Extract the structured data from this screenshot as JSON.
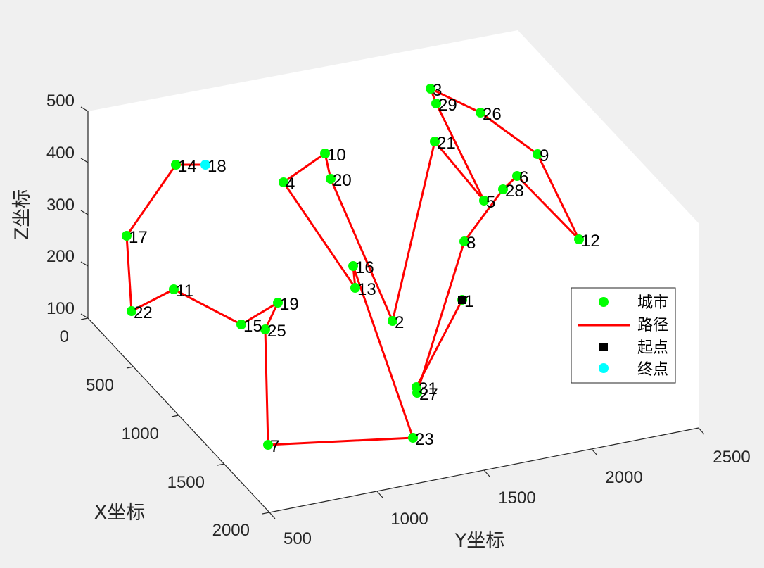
{
  "chart_data": {
    "type": "scatter",
    "projection": "3d",
    "xlabel": "X坐标",
    "ylabel": "Y坐标",
    "zlabel": "Z坐标",
    "x_ticks": [
      "0",
      "500",
      "1000",
      "1500",
      "2000"
    ],
    "y_ticks": [
      "500",
      "1000",
      "1500",
      "2000",
      "2500"
    ],
    "z_ticks": [
      "100",
      "200",
      "300",
      "400",
      "500"
    ],
    "legend": {
      "placement": "east",
      "items": [
        {
          "label": "城市",
          "kind": "point",
          "color": "#00ff00"
        },
        {
          "label": "路径",
          "kind": "line",
          "color": "#ff0000"
        },
        {
          "label": "起点",
          "kind": "square",
          "color": "#000000"
        },
        {
          "label": "终点",
          "kind": "point",
          "color": "#00ffff"
        }
      ]
    },
    "colors": {
      "city": "#00ff00",
      "path": "#ff0000",
      "start": "#000000",
      "end": "#00ffff"
    },
    "cities": [
      {
        "id": "1",
        "sx": 657,
        "sy": 426
      },
      {
        "id": "2",
        "sx": 558,
        "sy": 456
      },
      {
        "id": "3",
        "sx": 612,
        "sy": 126
      },
      {
        "id": "4",
        "sx": 403,
        "sy": 259
      },
      {
        "id": "5",
        "sx": 688,
        "sy": 285
      },
      {
        "id": "6",
        "sx": 735,
        "sy": 250
      },
      {
        "id": "7",
        "sx": 381,
        "sy": 632
      },
      {
        "id": "8",
        "sx": 660,
        "sy": 343
      },
      {
        "id": "9",
        "sx": 764,
        "sy": 219
      },
      {
        "id": "10",
        "sx": 462,
        "sy": 218
      },
      {
        "id": "11",
        "sx": 247,
        "sy": 411
      },
      {
        "id": "12",
        "sx": 823,
        "sy": 340
      },
      {
        "id": "13",
        "sx": 505,
        "sy": 409
      },
      {
        "id": "14",
        "sx": 250,
        "sy": 234
      },
      {
        "id": "15",
        "sx": 343,
        "sy": 461
      },
      {
        "id": "16",
        "sx": 502,
        "sy": 378
      },
      {
        "id": "17",
        "sx": 180,
        "sy": 335
      },
      {
        "id": "18",
        "sx": 292,
        "sy": 234
      },
      {
        "id": "19",
        "sx": 395,
        "sy": 430
      },
      {
        "id": "20",
        "sx": 470,
        "sy": 254
      },
      {
        "id": "21",
        "sx": 618,
        "sy": 201
      },
      {
        "id": "22",
        "sx": 187,
        "sy": 442
      },
      {
        "id": "23",
        "sx": 587,
        "sy": 622
      },
      {
        "id": "25",
        "sx": 377,
        "sy": 468
      },
      {
        "id": "26",
        "sx": 683,
        "sy": 160
      },
      {
        "id": "27",
        "sx": 593,
        "sy": 558
      },
      {
        "id": "28",
        "sx": 715,
        "sy": 269
      },
      {
        "id": "29",
        "sx": 620,
        "sy": 147
      },
      {
        "id": "31",
        "sx": 592,
        "sy": 550
      }
    ],
    "route": [
      "1",
      "31",
      "27",
      "8",
      "28",
      "6",
      "12",
      "9",
      "26",
      "3",
      "29",
      "5",
      "21",
      "2",
      "20",
      "10",
      "4",
      "13",
      "16",
      "23",
      "7",
      "25",
      "19",
      "15",
      "11",
      "22",
      "17",
      "14",
      "18"
    ],
    "start": "1",
    "end": "18"
  }
}
